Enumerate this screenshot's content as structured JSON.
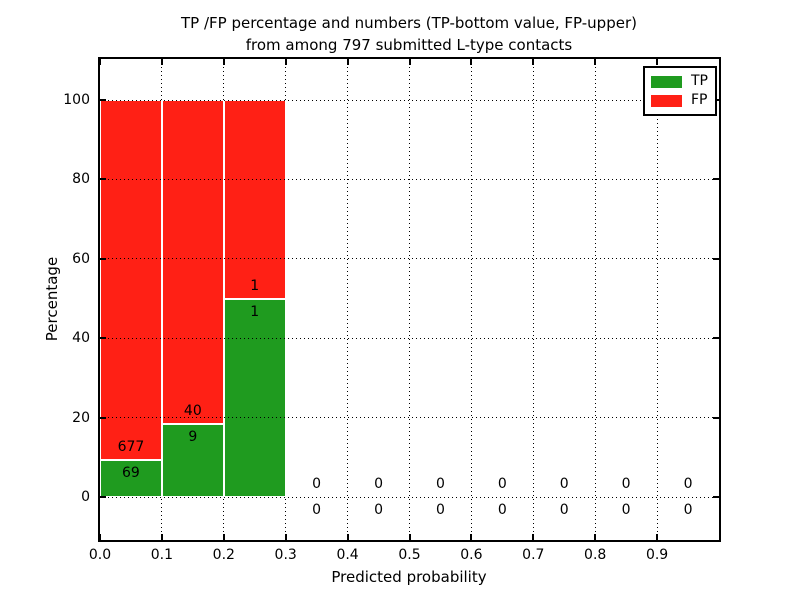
{
  "figure": {
    "title_line1": "TP /FP percentage and numbers (TP-bottom value, FP-upper)",
    "title_line2": "from among 797 submitted L-type contacts",
    "xlabel": "Predicted probability",
    "ylabel": "Percentage"
  },
  "legend": {
    "items": [
      {
        "label": "TP",
        "color": "#1f9b1f"
      },
      {
        "label": "FP",
        "color": "#ff2015"
      }
    ]
  },
  "chart_data": {
    "type": "bar",
    "stacked": true,
    "title": "TP /FP percentage and numbers (TP-bottom value, FP-upper) from among 797 submitted L-type contacts",
    "xlabel": "Predicted probability",
    "ylabel": "Percentage",
    "total_submitted": 797,
    "xlim": [
      0.0,
      1.0
    ],
    "ylim": [
      -11,
      110
    ],
    "x_ticks": [
      "0.0",
      "0.1",
      "0.2",
      "0.3",
      "0.4",
      "0.5",
      "0.6",
      "0.7",
      "0.8",
      "0.9"
    ],
    "y_ticks": [
      0,
      20,
      40,
      60,
      80,
      100
    ],
    "grid": "dotted",
    "legend_position": "upper right",
    "series": [
      {
        "name": "TP",
        "color": "#1f9b1f",
        "position": "bottom"
      },
      {
        "name": "FP",
        "color": "#ff2015",
        "position": "top"
      }
    ],
    "bins": [
      {
        "range": [
          0.0,
          0.1
        ],
        "tp_count": 69,
        "fp_count": 677,
        "tp_pct": 9.25,
        "fp_pct": 90.75
      },
      {
        "range": [
          0.1,
          0.2
        ],
        "tp_count": 9,
        "fp_count": 40,
        "tp_pct": 18.37,
        "fp_pct": 81.63
      },
      {
        "range": [
          0.2,
          0.3
        ],
        "tp_count": 1,
        "fp_count": 1,
        "tp_pct": 50.0,
        "fp_pct": 50.0
      },
      {
        "range": [
          0.3,
          0.4
        ],
        "tp_count": 0,
        "fp_count": 0,
        "tp_pct": 0,
        "fp_pct": 0
      },
      {
        "range": [
          0.4,
          0.5
        ],
        "tp_count": 0,
        "fp_count": 0,
        "tp_pct": 0,
        "fp_pct": 0
      },
      {
        "range": [
          0.5,
          0.6
        ],
        "tp_count": 0,
        "fp_count": 0,
        "tp_pct": 0,
        "fp_pct": 0
      },
      {
        "range": [
          0.6,
          0.7
        ],
        "tp_count": 0,
        "fp_count": 0,
        "tp_pct": 0,
        "fp_pct": 0
      },
      {
        "range": [
          0.7,
          0.8
        ],
        "tp_count": 0,
        "fp_count": 0,
        "tp_pct": 0,
        "fp_pct": 0
      },
      {
        "range": [
          0.8,
          0.9
        ],
        "tp_count": 0,
        "fp_count": 0,
        "tp_pct": 0,
        "fp_pct": 0
      },
      {
        "range": [
          0.9,
          1.0
        ],
        "tp_count": 0,
        "fp_count": 0,
        "tp_pct": 0,
        "fp_pct": 0
      }
    ]
  }
}
